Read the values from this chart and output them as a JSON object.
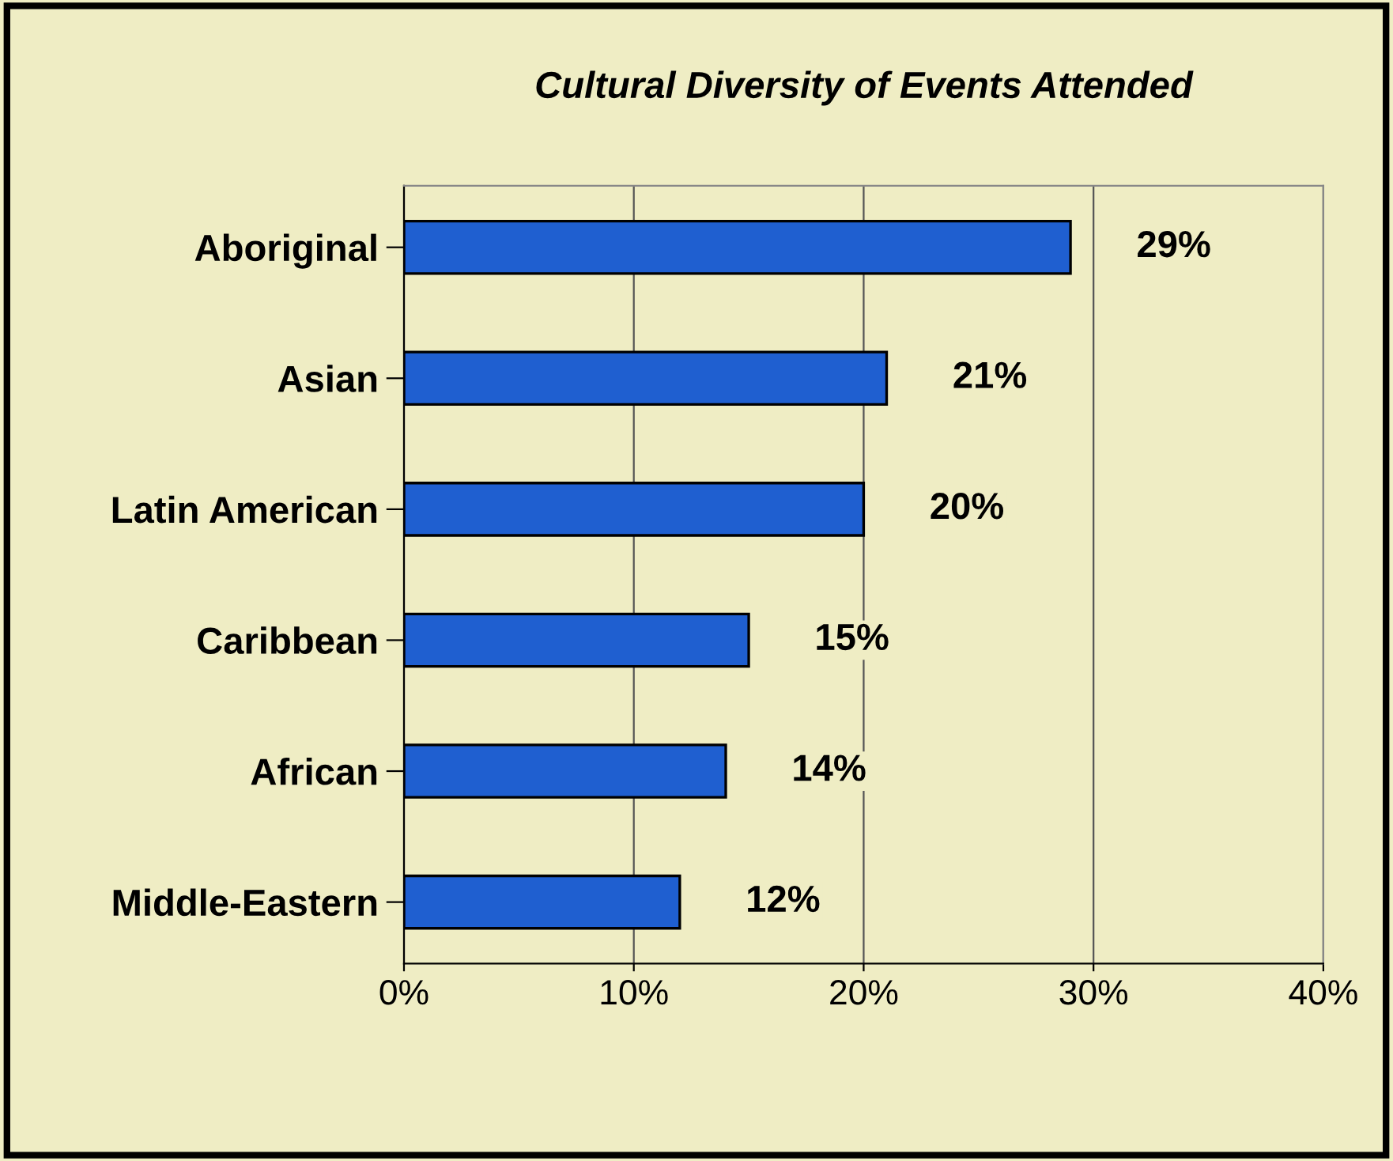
{
  "chart_data": {
    "type": "bar",
    "orientation": "horizontal",
    "title": "Cultural Diversity of Events Attended",
    "categories": [
      "Aboriginal",
      "Asian",
      "Latin American",
      "Caribbean",
      "African",
      "Middle-Eastern"
    ],
    "values": [
      29,
      21,
      20,
      15,
      14,
      12
    ],
    "value_labels": [
      "29%",
      "21%",
      "20%",
      "15%",
      "14%",
      "12%"
    ],
    "color": "#1f5fd0",
    "xlim": [
      0,
      40
    ],
    "xticks": [
      {
        "value": 0,
        "label": "0%"
      },
      {
        "value": 10,
        "label": "10%"
      },
      {
        "value": 20,
        "label": "20%"
      },
      {
        "value": 30,
        "label": "30%"
      },
      {
        "value": 40,
        "label": "40%"
      }
    ],
    "grid": "x",
    "legend": false
  }
}
